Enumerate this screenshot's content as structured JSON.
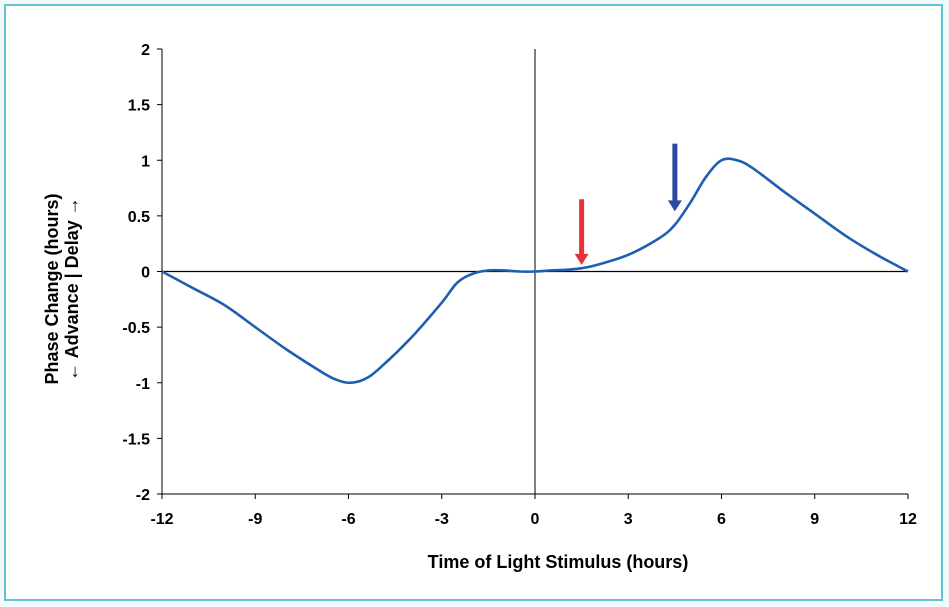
{
  "chart_data": {
    "type": "line",
    "xlabel": "Time of Light Stimulus (hours)",
    "ylabel_lines": [
      "Phase Change (hours)",
      "← Advance | Delay →"
    ],
    "xlim": [
      -12,
      12
    ],
    "ylim": [
      -2,
      2
    ],
    "xticks": [
      -12,
      -9,
      -6,
      -3,
      0,
      3,
      6,
      9,
      12
    ],
    "yticks": [
      -2,
      -1.5,
      -1,
      -0.5,
      0,
      0.5,
      1,
      1.5,
      2
    ],
    "grid": false,
    "legend": "none",
    "series": [
      {
        "color": "#1f5fb0",
        "x": [
          -12,
          -11,
          -10,
          -9,
          -8,
          -7,
          -6.5,
          -6,
          -5.5,
          -5,
          -4,
          -3,
          -2.5,
          -2,
          -1.5,
          -1,
          -0.5,
          0,
          0.5,
          1,
          1.5,
          2,
          3,
          4,
          4.5,
          5,
          5.5,
          6,
          6.5,
          7,
          8,
          9,
          10,
          11,
          12
        ],
        "y": [
          0,
          -0.15,
          -0.3,
          -0.5,
          -0.7,
          -0.88,
          -0.96,
          -1.0,
          -0.97,
          -0.87,
          -0.6,
          -0.28,
          -0.1,
          -0.02,
          0.01,
          0.01,
          0.0,
          0.0,
          0.01,
          0.015,
          0.03,
          0.06,
          0.15,
          0.3,
          0.42,
          0.62,
          0.85,
          1.0,
          1.0,
          0.93,
          0.72,
          0.52,
          0.32,
          0.15,
          0.0
        ]
      }
    ],
    "markers": [
      {
        "name": "red-arrow",
        "x": 1.5,
        "y_top": 0.65,
        "y_tip": 0.06,
        "color": "#e8303a"
      },
      {
        "name": "blue-arrow",
        "x": 4.5,
        "y_top": 1.15,
        "y_tip": 0.54,
        "color": "#2a4ba0"
      }
    ]
  }
}
